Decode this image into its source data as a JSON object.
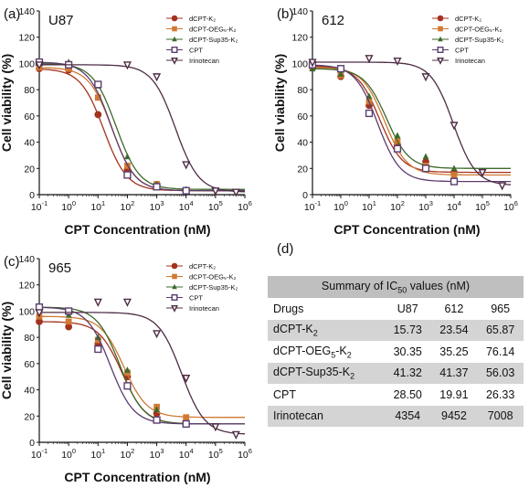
{
  "panel_d_label": "(d)",
  "ic50_table": {
    "title": "Summary of IC50 values (nM)",
    "columns": [
      "Drugs",
      "U87",
      "612",
      "965"
    ],
    "rows": [
      {
        "drug": "dCPT-K2",
        "u87": "15.73",
        "c612": "23.54",
        "c965": "65.87"
      },
      {
        "drug": "dCPT-OEG5-K2",
        "u87": "30.35",
        "c612": "35.25",
        "c965": "76.14"
      },
      {
        "drug": "dCPT-Sup35-K2",
        "u87": "41.32",
        "c612": "41.37",
        "c965": "56.03"
      },
      {
        "drug": "CPT",
        "u87": "28.50",
        "c612": "19.91",
        "c965": "26.33"
      },
      {
        "drug": "Irinotecan",
        "u87": "4354",
        "c612": "9452",
        "c965": "7008"
      }
    ]
  },
  "series_style": [
    {
      "name": "dCPT-K2",
      "color": "#a3321f",
      "marker": "circle-filled"
    },
    {
      "name": "dCPT-OEG5-K2",
      "color": "#d07a34",
      "marker": "square-filled"
    },
    {
      "name": "dCPT-Sup35-K2",
      "color": "#3d6a2c",
      "marker": "triangle-up-filled"
    },
    {
      "name": "CPT",
      "color": "#5b3c6e",
      "marker": "square-open"
    },
    {
      "name": "Irinotecan",
      "color": "#4e2c45",
      "marker": "triangle-down-open"
    }
  ],
  "chart_data": [
    {
      "type": "scatter",
      "panel": "(a)",
      "title": "U87",
      "xlabel": "CPT Concentration (nM)",
      "ylabel": "Cell viability (%)",
      "xscale": "log",
      "xlim": [
        0.1,
        1000000
      ],
      "ylim": [
        0,
        140
      ],
      "xticks": [
        "10-1",
        "100",
        "101",
        "102",
        "103",
        "104",
        "105",
        "106"
      ],
      "yticks": [
        0,
        20,
        40,
        60,
        80,
        100,
        120,
        140
      ],
      "legend": "top-right",
      "x": [
        0.1,
        1,
        10,
        100,
        1000,
        10000
      ],
      "x_irinotecan": [
        0.1,
        100,
        1000,
        10000,
        100000,
        500000
      ],
      "series": [
        {
          "name": "dCPT-K2",
          "values": [
            96,
            95,
            61,
            19,
            6,
            3
          ],
          "ic50": 15.73
        },
        {
          "name": "dCPT-OEG5-K2",
          "values": [
            97,
            96,
            74,
            22,
            8,
            3
          ],
          "ic50": 30.35
        },
        {
          "name": "dCPT-Sup35-K2",
          "values": [
            100,
            101,
            83,
            29,
            8,
            4
          ],
          "ic50": 41.32
        },
        {
          "name": "CPT",
          "values": [
            101,
            99,
            84,
            15,
            6,
            3
          ],
          "ic50": 28.5
        },
        {
          "name": "Irinotecan",
          "values": [
            99,
            99,
            90,
            23,
            3,
            2
          ],
          "ic50": 4354
        }
      ]
    },
    {
      "type": "scatter",
      "panel": "(b)",
      "title": "612",
      "xlabel": "CPT Concentration (nM)",
      "ylabel": "Cell viability (%)",
      "xscale": "log",
      "xlim": [
        0.1,
        1000000
      ],
      "ylim": [
        0,
        140
      ],
      "xticks": [
        "10-1",
        "100",
        "101",
        "102",
        "103",
        "104",
        "105",
        "106"
      ],
      "yticks": [
        0,
        20,
        40,
        60,
        80,
        100,
        120,
        140
      ],
      "legend": "top-right",
      "x": [
        0.1,
        1,
        10,
        100,
        1000,
        10000
      ],
      "x_irinotecan": [
        0.1,
        10,
        100,
        1000,
        10000,
        100000,
        500000
      ],
      "series": [
        {
          "name": "dCPT-K2",
          "values": [
            98,
            90,
            68,
            38,
            25,
            17
          ],
          "ic50": 23.54
        },
        {
          "name": "dCPT-OEG5-K2",
          "values": [
            97,
            91,
            71,
            41,
            22,
            15
          ],
          "ic50": 35.25
        },
        {
          "name": "dCPT-Sup35-K2",
          "values": [
            96,
            92,
            75,
            45,
            29,
            20
          ],
          "ic50": 41.37
        },
        {
          "name": "CPT",
          "values": [
            99,
            96,
            62,
            35,
            20,
            10
          ],
          "ic50": 19.91
        },
        {
          "name": "Irinotecan",
          "values": [
            101,
            104,
            102,
            90,
            53,
            17,
            7
          ],
          "ic50": 9452
        }
      ]
    },
    {
      "type": "scatter",
      "panel": "(c)",
      "title": "965",
      "xlabel": "CPT Concentration (nM)",
      "ylabel": "Cell viability (%)",
      "xscale": "log",
      "xlim": [
        0.1,
        1000000
      ],
      "ylim": [
        0,
        140
      ],
      "xticks": [
        "10-1",
        "100",
        "101",
        "102",
        "103",
        "104",
        "105",
        "106"
      ],
      "yticks": [
        0,
        20,
        40,
        60,
        80,
        100,
        120,
        140
      ],
      "legend": "top-right",
      "x": [
        0.1,
        1,
        10,
        100,
        1000,
        10000
      ],
      "x_irinotecan": [
        0.1,
        10,
        100,
        1000,
        10000,
        100000,
        500000
      ],
      "series": [
        {
          "name": "dCPT-K2",
          "values": [
            92,
            88,
            75,
            50,
            22,
            14
          ],
          "ic50": 65.87
        },
        {
          "name": "dCPT-OEG5-K2",
          "values": [
            96,
            92,
            78,
            53,
            27,
            19
          ],
          "ic50": 76.14
        },
        {
          "name": "dCPT-Sup35-K2",
          "values": [
            103,
            97,
            80,
            55,
            25,
            14
          ],
          "ic50": 56.03
        },
        {
          "name": "CPT",
          "values": [
            103,
            100,
            71,
            43,
            17,
            14
          ],
          "ic50": 26.33
        },
        {
          "name": "Irinotecan",
          "values": [
            99,
            107,
            107,
            83,
            49,
            12,
            6
          ],
          "ic50": 7008
        }
      ]
    }
  ]
}
